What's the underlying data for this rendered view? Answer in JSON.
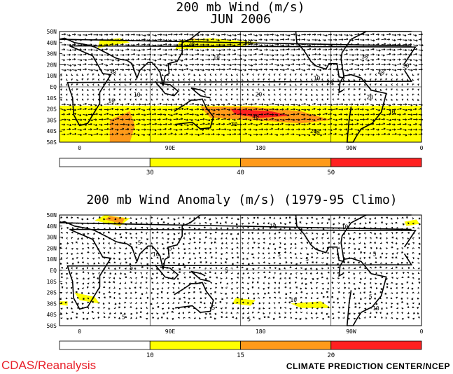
{
  "panel1": {
    "title_line1": "200 mb Wind (m/s)",
    "title_line2": "JUN 2006",
    "lat_labels": [
      "50N",
      "40N",
      "30N",
      "20N",
      "10N",
      "EQ",
      "10S",
      "20S",
      "30S",
      "40S",
      "50S"
    ],
    "lon_labels": [
      "0",
      "90E",
      "180",
      "90W",
      "0"
    ],
    "colorbar": {
      "ticks": [
        "30",
        "40",
        "50"
      ],
      "colors": [
        "#ffffff",
        "#ffff00",
        "#ff9a1a",
        "#ff2020"
      ]
    },
    "contour_labels": [
      "10",
      "20",
      "30",
      "40",
      "10",
      "20",
      "30",
      "10",
      "20",
      "30",
      "40",
      "10",
      "20",
      "30",
      "40",
      "30",
      "10",
      "20"
    ]
  },
  "panel2": {
    "title": "200 mb Wind Anomaly (m/s) (1979-95 Climo)",
    "lat_labels": [
      "50N",
      "40N",
      "30N",
      "20N",
      "10N",
      "EQ",
      "10S",
      "20S",
      "30S",
      "40S",
      "50S"
    ],
    "lon_labels": [
      "0",
      "90E",
      "180",
      "90W",
      "0"
    ],
    "colorbar": {
      "ticks": [
        "10",
        "15",
        "20"
      ],
      "colors": [
        "#ffffff",
        "#ffff00",
        "#ff9a1a",
        "#ff2020"
      ]
    },
    "contour_labels": [
      "10",
      "5",
      "5",
      "5",
      "10",
      "5",
      "5",
      "10",
      "5",
      "5",
      "10",
      "5",
      "5",
      "10",
      "5",
      "5"
    ]
  },
  "footer": {
    "left": "CDAS/Reanalysis",
    "right": "CLIMATE PREDICTION CENTER/NCEP"
  }
}
